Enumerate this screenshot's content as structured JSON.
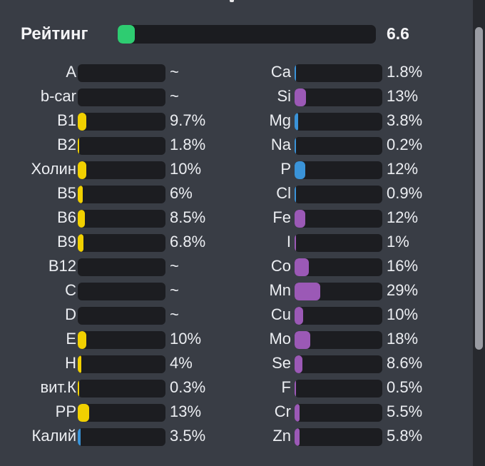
{
  "colors": {
    "rating": "#2ecc71",
    "vitamin": "#f1d000",
    "mineral_blue": "#3a93d8",
    "mineral_purple": "#9b59b6"
  },
  "rating": {
    "label": "Рейтинг",
    "value": "6.6",
    "fraction": 0.066
  },
  "vitamins": [
    {
      "name": "A",
      "value": "~",
      "fraction": 0,
      "color": "#f1d000"
    },
    {
      "name": "b-car",
      "value": "~",
      "fraction": 0,
      "color": "#f1d000"
    },
    {
      "name": "B1",
      "value": "9.7%",
      "fraction": 0.097,
      "color": "#f1d000"
    },
    {
      "name": "B2",
      "value": "1.8%",
      "fraction": 0.018,
      "color": "#f1d000"
    },
    {
      "name": "Холин",
      "value": "10%",
      "fraction": 0.1,
      "color": "#f1d000"
    },
    {
      "name": "B5",
      "value": "6%",
      "fraction": 0.06,
      "color": "#f1d000"
    },
    {
      "name": "B6",
      "value": "8.5%",
      "fraction": 0.085,
      "color": "#f1d000"
    },
    {
      "name": "B9",
      "value": "6.8%",
      "fraction": 0.068,
      "color": "#f1d000"
    },
    {
      "name": "B12",
      "value": "~",
      "fraction": 0,
      "color": "#f1d000"
    },
    {
      "name": "C",
      "value": "~",
      "fraction": 0,
      "color": "#f1d000"
    },
    {
      "name": "D",
      "value": "~",
      "fraction": 0,
      "color": "#f1d000"
    },
    {
      "name": "E",
      "value": "10%",
      "fraction": 0.1,
      "color": "#f1d000"
    },
    {
      "name": "H",
      "value": "4%",
      "fraction": 0.04,
      "color": "#f1d000"
    },
    {
      "name": "вит.К",
      "value": "0.3%",
      "fraction": 0.003,
      "color": "#f1d000"
    },
    {
      "name": "PP",
      "value": "13%",
      "fraction": 0.13,
      "color": "#f1d000"
    },
    {
      "name": "Калий",
      "value": "3.5%",
      "fraction": 0.035,
      "color": "#3a93d8"
    }
  ],
  "minerals": [
    {
      "name": "Ca",
      "value": "1.8%",
      "fraction": 0.018,
      "color": "#3a93d8"
    },
    {
      "name": "Si",
      "value": "13%",
      "fraction": 0.13,
      "color": "#9b59b6"
    },
    {
      "name": "Mg",
      "value": "3.8%",
      "fraction": 0.038,
      "color": "#3a93d8"
    },
    {
      "name": "Na",
      "value": "0.2%",
      "fraction": 0.002,
      "color": "#3a93d8"
    },
    {
      "name": "P",
      "value": "12%",
      "fraction": 0.12,
      "color": "#3a93d8"
    },
    {
      "name": "Cl",
      "value": "0.9%",
      "fraction": 0.009,
      "color": "#3a93d8"
    },
    {
      "name": "Fe",
      "value": "12%",
      "fraction": 0.12,
      "color": "#9b59b6"
    },
    {
      "name": "I",
      "value": "1%",
      "fraction": 0.01,
      "color": "#9b59b6"
    },
    {
      "name": "Co",
      "value": "16%",
      "fraction": 0.16,
      "color": "#9b59b6"
    },
    {
      "name": "Mn",
      "value": "29%",
      "fraction": 0.29,
      "color": "#9b59b6"
    },
    {
      "name": "Cu",
      "value": "10%",
      "fraction": 0.1,
      "color": "#9b59b6"
    },
    {
      "name": "Mo",
      "value": "18%",
      "fraction": 0.18,
      "color": "#9b59b6"
    },
    {
      "name": "Se",
      "value": "8.6%",
      "fraction": 0.086,
      "color": "#9b59b6"
    },
    {
      "name": "F",
      "value": "0.5%",
      "fraction": 0.005,
      "color": "#9b59b6"
    },
    {
      "name": "Cr",
      "value": "5.5%",
      "fraction": 0.055,
      "color": "#9b59b6"
    },
    {
      "name": "Zn",
      "value": "5.8%",
      "fraction": 0.058,
      "color": "#9b59b6"
    }
  ]
}
